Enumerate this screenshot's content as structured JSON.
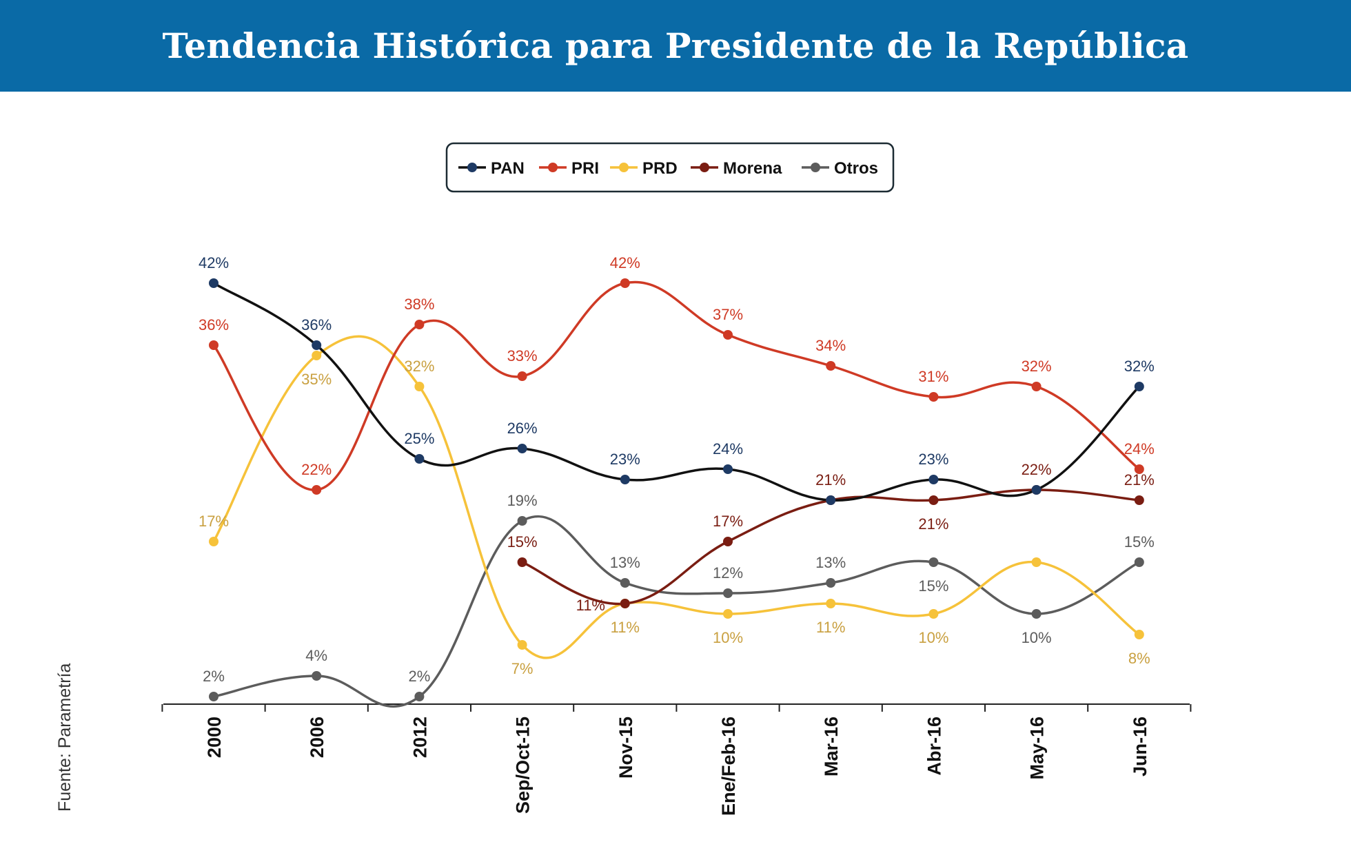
{
  "title": "Tendencia Histórica para Presidente de la República",
  "source": "Fuente: Parametría",
  "colors": {
    "header_bg": "#0a6aa6",
    "PAN_line": "#111111",
    "PAN_marker": "#1e3a64",
    "PRI": "#cf3a25",
    "PRD": "#f6c23a",
    "PRD_label": "#c9a040",
    "Morena": "#7a1d12",
    "Otros": "#5c5c5c"
  },
  "chart_data": {
    "type": "line",
    "title": "Tendencia Histórica para Presidente de la República",
    "xlabel": "",
    "ylabel": "",
    "ylim": [
      0,
      45
    ],
    "grid": false,
    "legend_position": "top-center",
    "categories": [
      "2000",
      "2006",
      "2012",
      "Sep/Oct-15",
      "Nov-15",
      "Ene/Feb-16",
      "Mar-16",
      "Abr-16",
      "May-16",
      "Jun-16"
    ],
    "series": [
      {
        "name": "PAN",
        "values": [
          42,
          36,
          25,
          26,
          23,
          24,
          21,
          23,
          22,
          32
        ],
        "labels": [
          "42%",
          "36%",
          "25%",
          "26%",
          "23%",
          "24%",
          "",
          "23%",
          "",
          "32%"
        ]
      },
      {
        "name": "PRI",
        "values": [
          36,
          22,
          38,
          33,
          42,
          37,
          34,
          31,
          32,
          24
        ],
        "labels": [
          "36%",
          "22%",
          "38%",
          "33%",
          "42%",
          "37%",
          "34%",
          "31%",
          "32%",
          "24%"
        ]
      },
      {
        "name": "PRD",
        "values": [
          17,
          35,
          32,
          7,
          11,
          10,
          11,
          10,
          15,
          8
        ],
        "labels": [
          "17%",
          "35%",
          "32%",
          "7%",
          "11%",
          "10%",
          "11%",
          "10%",
          "",
          "8%"
        ]
      },
      {
        "name": "Morena",
        "values": [
          null,
          null,
          null,
          15,
          11,
          17,
          21,
          21,
          22,
          21
        ],
        "labels": [
          "",
          "",
          "",
          "15%",
          "11%",
          "17%",
          "21%",
          "21%",
          "22%",
          "21%"
        ]
      },
      {
        "name": "Otros",
        "values": [
          2,
          4,
          2,
          19,
          13,
          12,
          13,
          15,
          10,
          15
        ],
        "labels": [
          "2%",
          "4%",
          "2%",
          "19%",
          "13%",
          "12%",
          "13%",
          "15%",
          "10%",
          "15%"
        ]
      }
    ]
  }
}
